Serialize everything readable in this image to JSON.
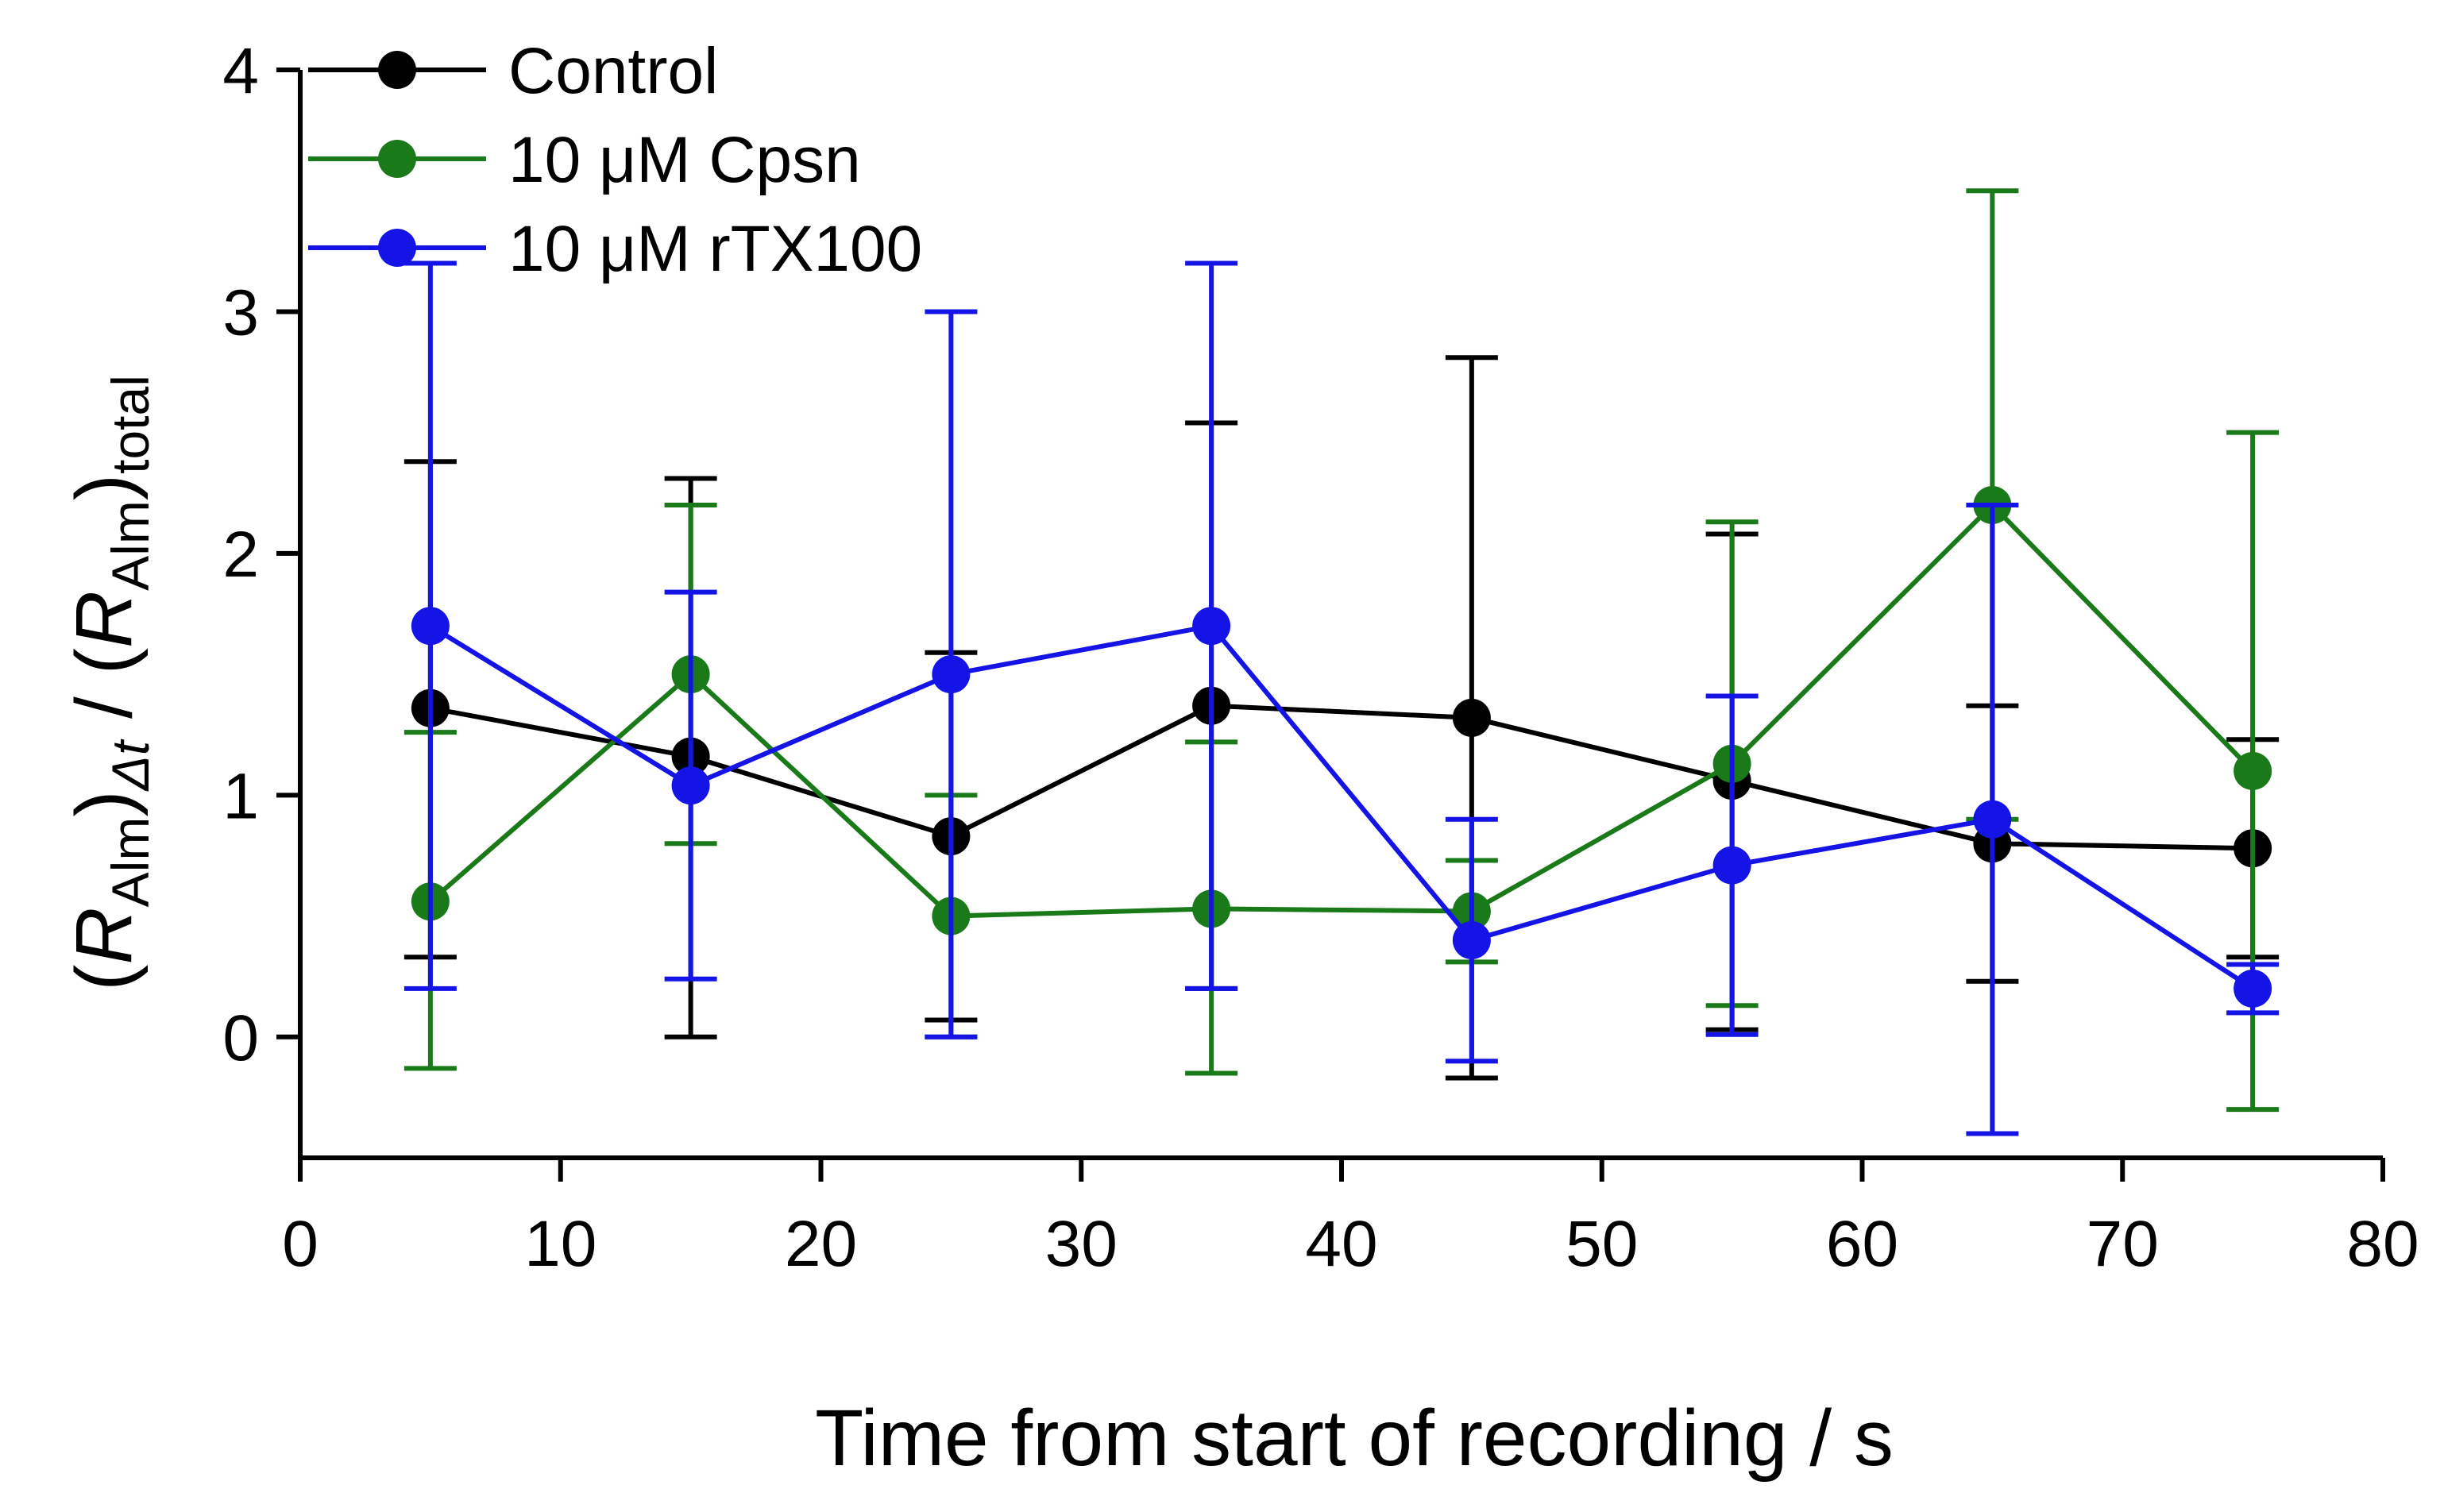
{
  "chart_data": {
    "type": "line",
    "title": "",
    "xlabel": "Time from start of recording / s",
    "ylabel": {
      "open1": "(",
      "r1": "R",
      "sub1": "Alm",
      "close1": ")",
      "sub_dt": "Δt",
      "slash": " / (",
      "r2": "R",
      "sub2": "Alm",
      "close2": ")",
      "sub_total": "total"
    },
    "xlim": [
      0,
      80
    ],
    "ylim": [
      -0.5,
      4
    ],
    "xticks": [
      0,
      10,
      20,
      30,
      40,
      50,
      60,
      70,
      80
    ],
    "yticks": [
      0,
      1,
      2,
      3,
      4
    ],
    "grid": false,
    "legend_position": "top-left",
    "series": [
      {
        "name": "Control",
        "color": "#000000",
        "x": [
          5,
          15,
          25,
          35,
          45,
          55,
          65,
          75
        ],
        "y": [
          1.36,
          1.16,
          0.83,
          1.37,
          1.32,
          1.06,
          0.8,
          0.78
        ],
        "err_upper": [
          2.38,
          2.31,
          1.59,
          2.54,
          2.81,
          2.08,
          1.37,
          1.23
        ],
        "err_lower": [
          0.33,
          0.0,
          0.07,
          0.2,
          -0.17,
          0.03,
          0.23,
          0.33
        ]
      },
      {
        "name": "10 μM Cpsn",
        "color": "#1a7a1a",
        "x": [
          5,
          15,
          25,
          35,
          45,
          55,
          65,
          75
        ],
        "y": [
          0.56,
          1.5,
          0.5,
          0.53,
          0.52,
          1.13,
          2.2,
          1.1
        ],
        "err_upper": [
          1.26,
          2.2,
          1.0,
          1.22,
          0.73,
          2.13,
          3.5,
          2.5
        ],
        "err_lower": [
          -0.13,
          0.8,
          0.0,
          -0.15,
          0.31,
          0.13,
          0.9,
          -0.3
        ]
      },
      {
        "name": "10 μM rTX100",
        "color": "#1414e6",
        "x": [
          5,
          15,
          25,
          35,
          45,
          55,
          65,
          75
        ],
        "y": [
          1.7,
          1.04,
          1.5,
          1.7,
          0.4,
          0.71,
          0.9,
          0.2
        ],
        "err_upper": [
          3.2,
          1.84,
          3.0,
          3.2,
          0.9,
          1.41,
          2.2,
          0.3
        ],
        "err_lower": [
          0.2,
          0.24,
          0.0,
          0.2,
          -0.1,
          0.01,
          -0.4,
          0.1
        ]
      }
    ]
  }
}
